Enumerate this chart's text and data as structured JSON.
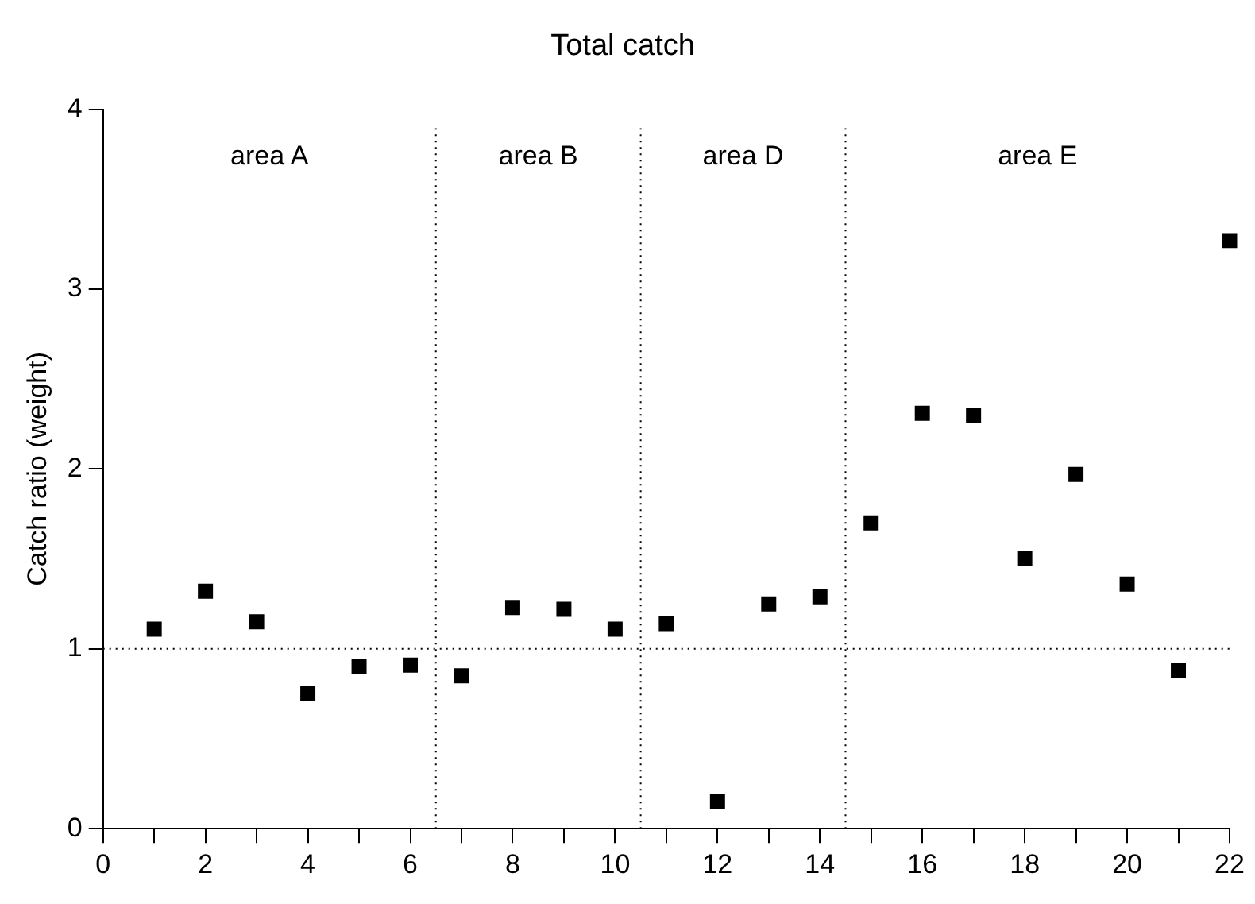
{
  "chart_data": {
    "type": "scatter",
    "title": "Total catch",
    "ylabel": "Catch ratio (weight)",
    "x": [
      1,
      2,
      3,
      4,
      5,
      6,
      7,
      8,
      9,
      10,
      11,
      12,
      13,
      14,
      15,
      16,
      17,
      18,
      19,
      20,
      21,
      22
    ],
    "series": [
      {
        "color": "#000000",
        "values": [
          1.11,
          1.32,
          1.15,
          0.75,
          0.9,
          0.91,
          0.85,
          1.23,
          1.22,
          1.11,
          1.14,
          0.15,
          1.25,
          1.29,
          1.7,
          2.31,
          2.3,
          1.5,
          1.97,
          1.36,
          0.88,
          3.27
        ]
      }
    ],
    "marker": "square",
    "grid": false,
    "legend": false,
    "xlim": [
      0,
      22
    ],
    "ylim": [
      0,
      4
    ],
    "xticks": [
      0,
      {
        "value": 1,
        "label": null
      },
      2,
      {
        "value": 3,
        "label": null
      },
      4,
      {
        "value": 5,
        "label": null
      },
      6,
      {
        "value": 7,
        "label": null
      },
      8,
      {
        "value": 9,
        "label": null
      },
      10,
      {
        "value": 11,
        "label": null
      },
      12,
      {
        "value": 13,
        "label": null
      },
      14,
      {
        "value": 15,
        "label": null
      },
      16,
      {
        "value": 17,
        "label": null
      },
      18,
      {
        "value": 19,
        "label": null
      },
      20,
      {
        "value": 21,
        "label": null
      },
      22
    ],
    "yticks": [
      0,
      1,
      2,
      3,
      4
    ],
    "ref_lines": [
      {
        "axis": "y",
        "value": 1,
        "line_style": "dotted",
        "color": "#000000"
      },
      {
        "axis": "x",
        "value": 6.5,
        "line_style": "dotted",
        "color": "#000000"
      },
      {
        "axis": "x",
        "value": 10.5,
        "line_style": "dotted",
        "color": "#000000"
      },
      {
        "axis": "x",
        "value": 14.5,
        "line_style": "dotted",
        "color": "#000000"
      }
    ],
    "annotations": [
      "area A",
      "area B",
      "area D",
      "area E"
    ]
  }
}
